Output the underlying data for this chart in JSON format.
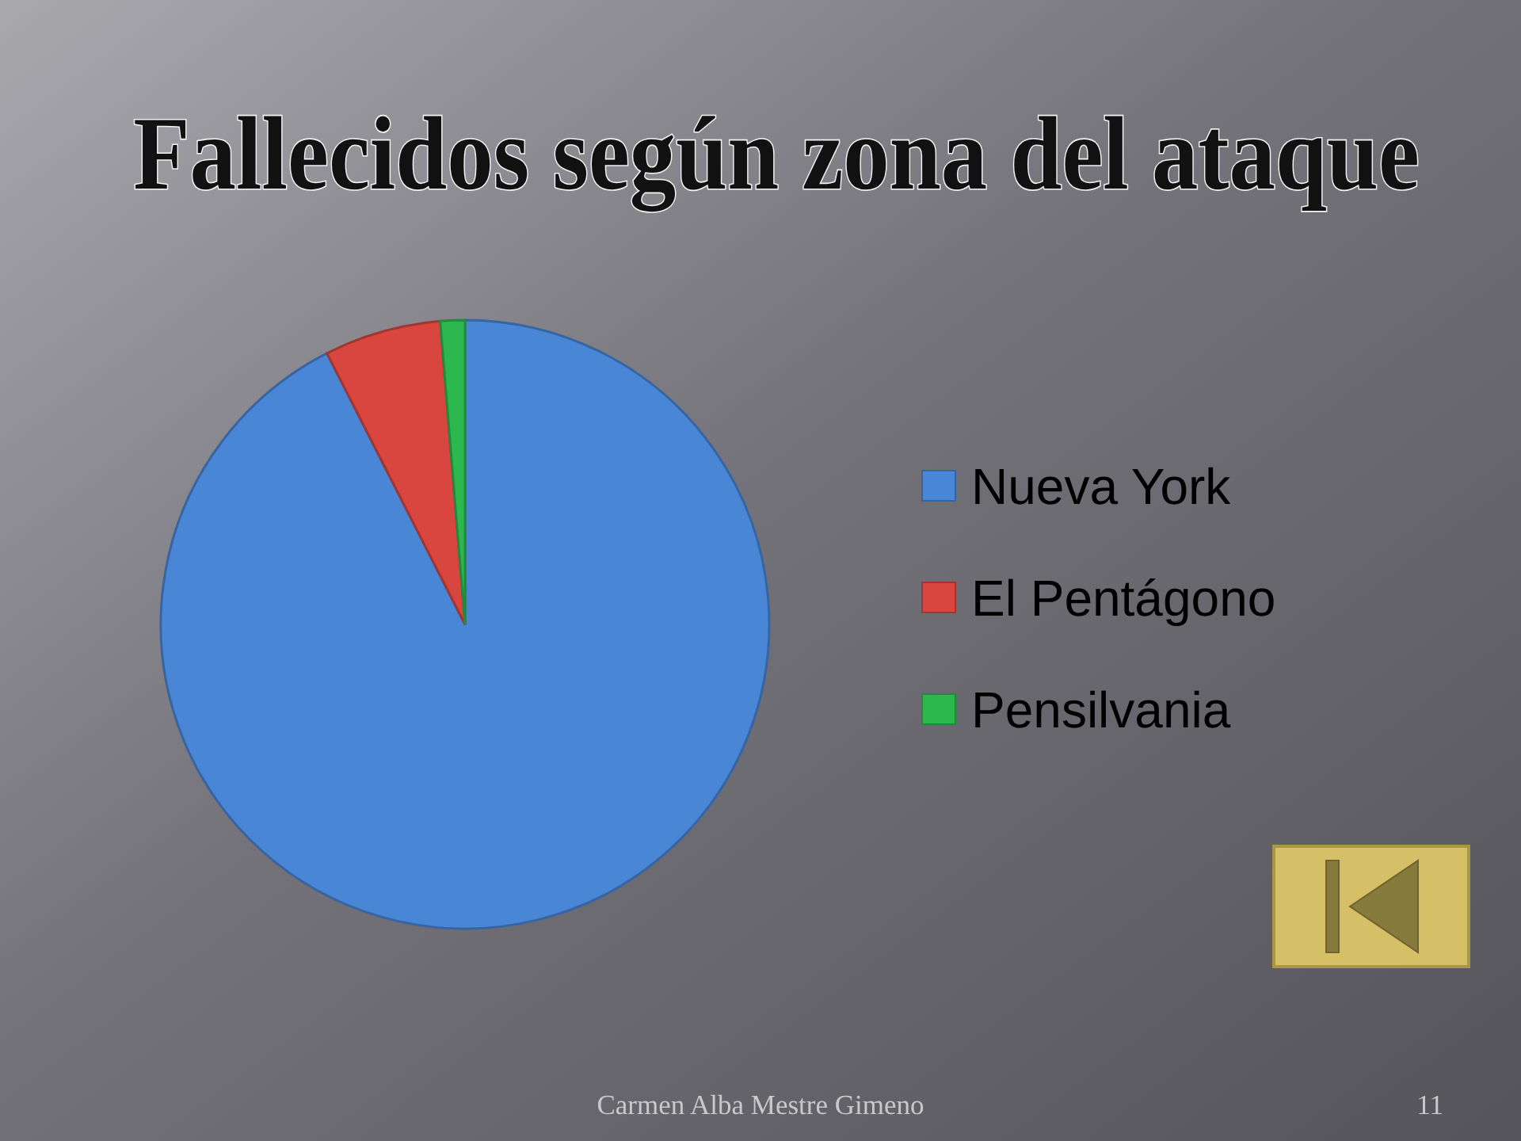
{
  "chart_data": {
    "type": "pie",
    "title": "Fallecidos según zona del ataque",
    "categories": [
      "Nueva York",
      "El Pentágono",
      "Pensilvania"
    ],
    "values": [
      92.5,
      6.2,
      1.3
    ],
    "colors": [
      "#4a86d6",
      "#d8463f",
      "#2cb84f"
    ],
    "legend": "right",
    "annotations": [
      "Carmen Alba Mestre Gimeno",
      "11"
    ]
  }
}
